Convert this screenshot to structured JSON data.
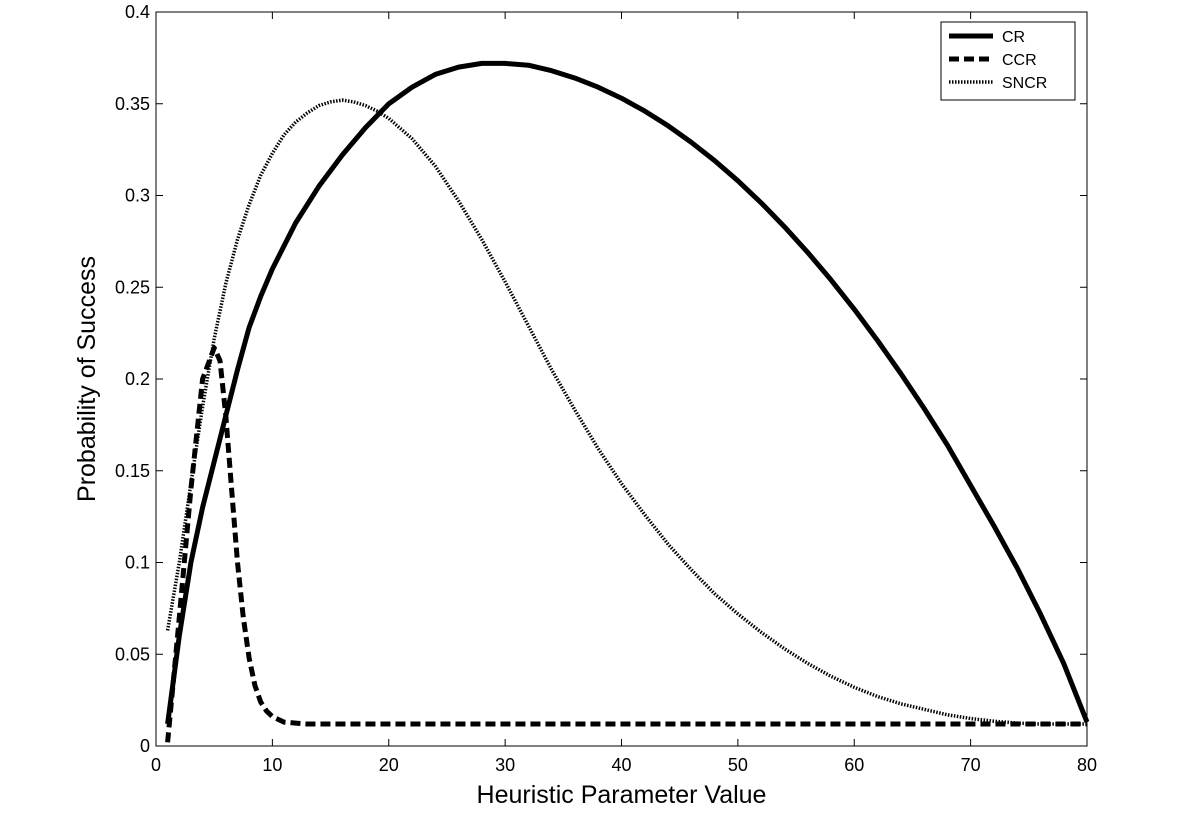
{
  "chart_data": {
    "type": "line",
    "title": "",
    "xlabel": "Heuristic Parameter Value",
    "ylabel": "Probability of Success",
    "xlim": [
      0,
      80
    ],
    "ylim": [
      0,
      0.4
    ],
    "xticks": [
      0,
      10,
      20,
      30,
      40,
      50,
      60,
      70,
      80
    ],
    "xtick_labels": [
      "0",
      "10",
      "20",
      "30",
      "40",
      "50",
      "60",
      "70",
      "80"
    ],
    "yticks": [
      0,
      0.05,
      0.1,
      0.15,
      0.2,
      0.25,
      0.3,
      0.35,
      0.4
    ],
    "ytick_labels": [
      "0",
      "0.05",
      "0.1",
      "0.15",
      "0.2",
      "0.25",
      "0.3",
      "0.35",
      "0.4"
    ],
    "grid": false,
    "legend_position": "top-right",
    "colors": {
      "axes": "#000000",
      "background": "#ffffff",
      "series": "#000000"
    },
    "series": [
      {
        "name": "CR",
        "line_style": "solid",
        "x": [
          1,
          2,
          3,
          4,
          5,
          6,
          7,
          8,
          9,
          10,
          12,
          14,
          16,
          18,
          20,
          22,
          24,
          26,
          28,
          30,
          32,
          34,
          36,
          38,
          40,
          42,
          44,
          46,
          48,
          50,
          52,
          54,
          56,
          58,
          60,
          62,
          64,
          66,
          68,
          70,
          72,
          74,
          76,
          78,
          80
        ],
        "y": [
          0.012,
          0.06,
          0.1,
          0.13,
          0.155,
          0.18,
          0.205,
          0.228,
          0.245,
          0.26,
          0.285,
          0.305,
          0.322,
          0.337,
          0.35,
          0.359,
          0.366,
          0.37,
          0.372,
          0.372,
          0.371,
          0.368,
          0.364,
          0.359,
          0.353,
          0.346,
          0.338,
          0.329,
          0.319,
          0.308,
          0.296,
          0.283,
          0.269,
          0.254,
          0.238,
          0.221,
          0.203,
          0.184,
          0.164,
          0.142,
          0.12,
          0.097,
          0.072,
          0.045,
          0.013
        ]
      },
      {
        "name": "CCR",
        "line_style": "dashed",
        "x": [
          1,
          2,
          3,
          4,
          5,
          5.5,
          6,
          6.5,
          7,
          7.5,
          8,
          8.5,
          9,
          9.5,
          10,
          11,
          12,
          13,
          15,
          20,
          30,
          40,
          50,
          60,
          70,
          80
        ],
        "y": [
          0.002,
          0.07,
          0.14,
          0.2,
          0.217,
          0.21,
          0.18,
          0.14,
          0.1,
          0.07,
          0.048,
          0.033,
          0.024,
          0.019,
          0.016,
          0.013,
          0.0125,
          0.012,
          0.012,
          0.012,
          0.012,
          0.012,
          0.012,
          0.012,
          0.012,
          0.012
        ]
      },
      {
        "name": "SNCR",
        "line_style": "dotted",
        "x": [
          1,
          2,
          3,
          4,
          5,
          6,
          7,
          8,
          9,
          10,
          11,
          12,
          13,
          14,
          15,
          16,
          17,
          18,
          19,
          20,
          22,
          24,
          26,
          28,
          30,
          32,
          34,
          36,
          38,
          40,
          42,
          44,
          46,
          48,
          50,
          52,
          54,
          56,
          58,
          60,
          62,
          64,
          66,
          68,
          70,
          72,
          74,
          76,
          78,
          80
        ],
        "y": [
          0.063,
          0.1,
          0.143,
          0.185,
          0.222,
          0.252,
          0.276,
          0.295,
          0.311,
          0.323,
          0.333,
          0.34,
          0.345,
          0.349,
          0.351,
          0.352,
          0.351,
          0.349,
          0.346,
          0.342,
          0.331,
          0.316,
          0.297,
          0.276,
          0.253,
          0.229,
          0.205,
          0.183,
          0.162,
          0.143,
          0.126,
          0.11,
          0.096,
          0.083,
          0.072,
          0.062,
          0.053,
          0.045,
          0.038,
          0.032,
          0.027,
          0.023,
          0.02,
          0.017,
          0.015,
          0.0135,
          0.0125,
          0.012,
          0.012,
          0.012
        ]
      }
    ]
  }
}
